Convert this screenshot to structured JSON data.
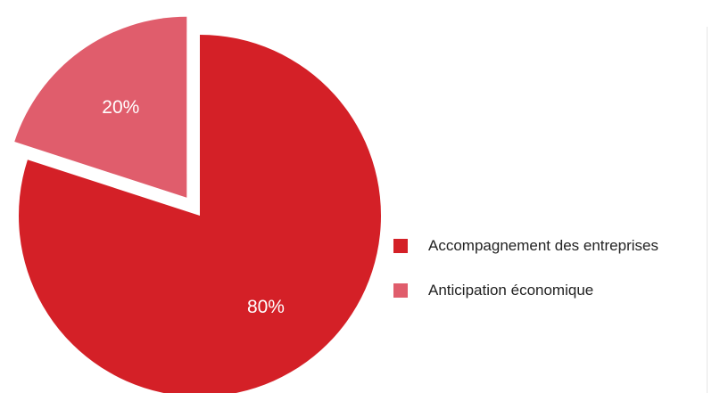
{
  "chart_data": {
    "type": "pie",
    "categories": [
      "Accompagnement des entreprises",
      "Anticipation économique"
    ],
    "values": [
      80,
      20
    ],
    "labels": [
      "80%",
      "20%"
    ],
    "colors": [
      "#d42027",
      "#e05d6c"
    ],
    "exploded": [
      false,
      true
    ],
    "legend_position": "right"
  }
}
